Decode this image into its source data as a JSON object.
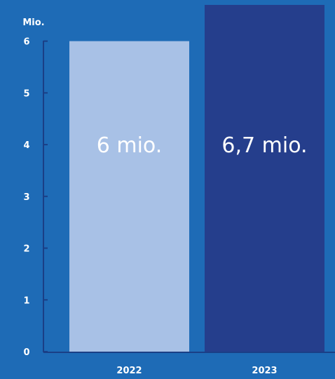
{
  "chart_data": {
    "type": "bar",
    "categories": [
      "2022",
      "2023"
    ],
    "values": [
      6,
      6.7
    ],
    "data_labels": [
      "6 mio.",
      "6,7 mio."
    ],
    "unit_label": "Mio.",
    "y_ticks": [
      "0",
      "1",
      "2",
      "3",
      "4",
      "5",
      "6"
    ],
    "ylim": [
      0,
      6.7
    ],
    "grid": false,
    "legend": "none",
    "colors": {
      "background": "#1e6bb6",
      "bar_2022": "#a8c1e6",
      "bar_2023": "#253e8c",
      "axis": "#1a3f86"
    }
  }
}
